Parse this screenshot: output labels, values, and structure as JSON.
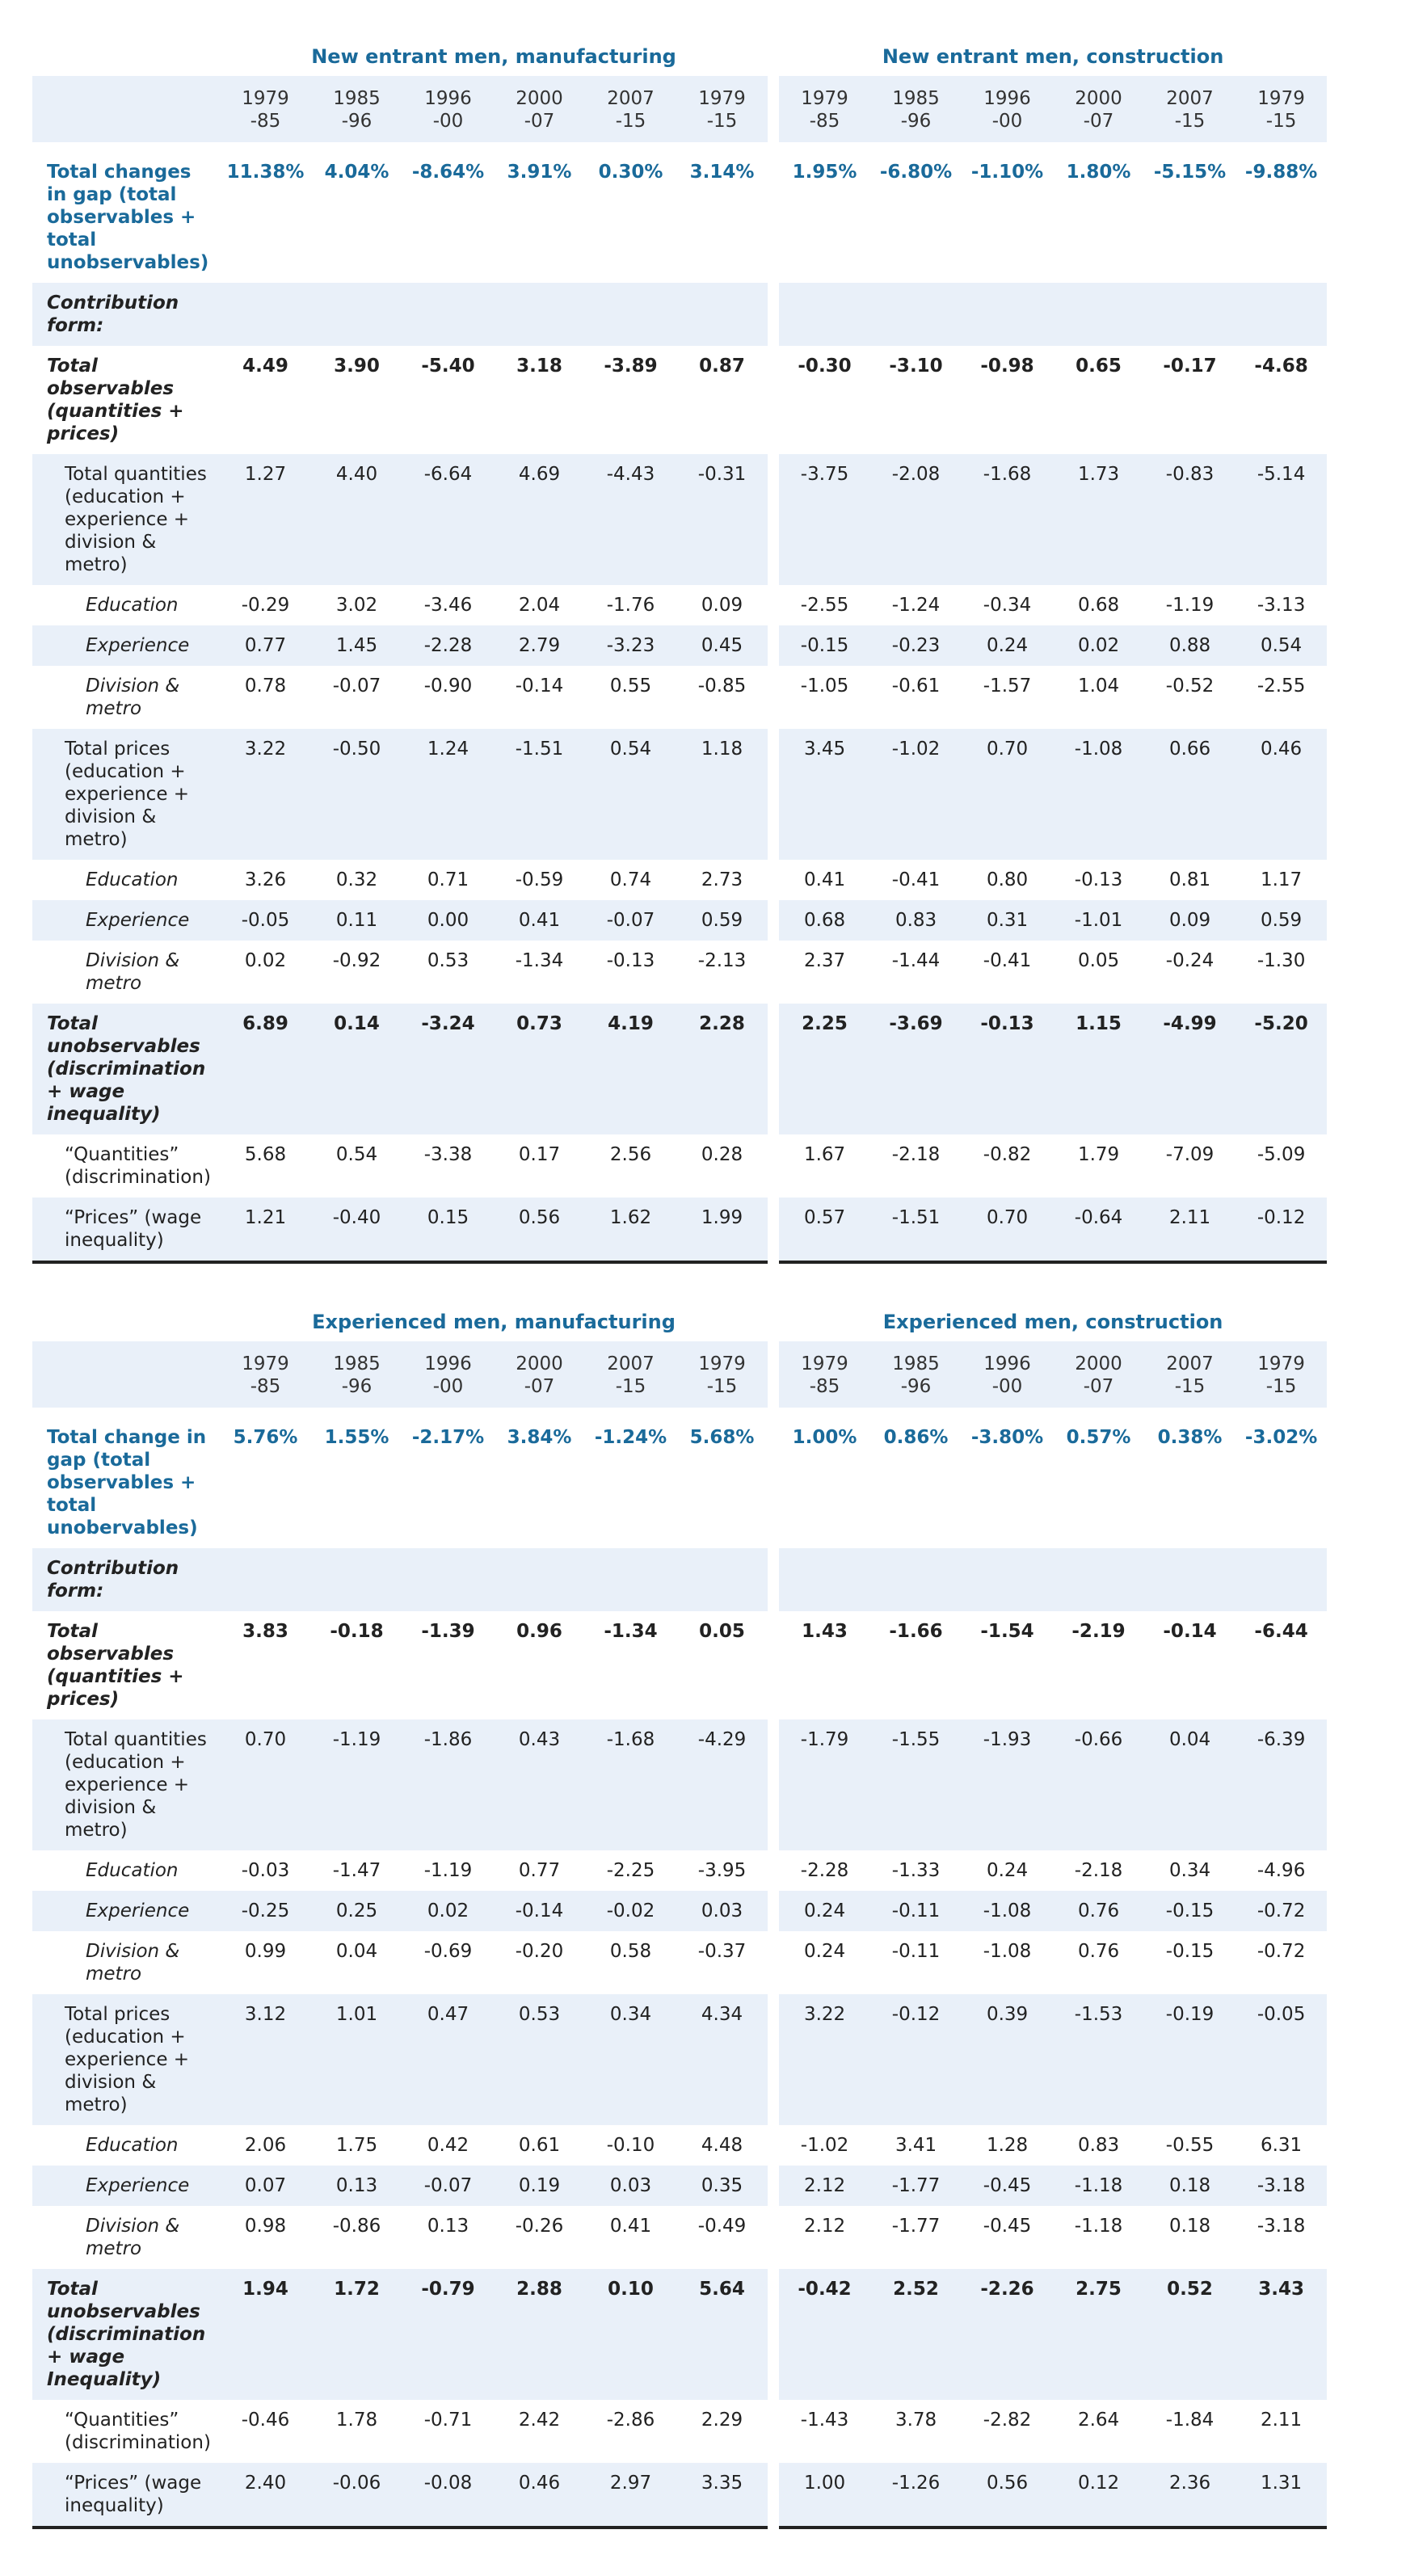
{
  "blocks": [
    {
      "panels": [
        {
          "title": "New entrant men, manufacturing",
          "years": [
            "1979-85",
            "1985-96",
            "1996-00",
            "2000-07",
            "2007-15",
            "1979-15"
          ]
        },
        {
          "title": "New entrant men, construction",
          "years": [
            "1979-85",
            "1985-96",
            "1996-00",
            "2000-07",
            "2007-15",
            "1979-15"
          ]
        }
      ],
      "rows": [
        {
          "label": "Total changes in gap (total observables + total unobservables)",
          "style": "total",
          "values": [
            [
              "11.38%",
              "4.04%",
              "-8.64%",
              "3.91%",
              "0.30%",
              "3.14%"
            ],
            [
              "1.95%",
              "-6.80%",
              "-1.10%",
              "1.80%",
              "-5.15%",
              "-9.88%"
            ]
          ]
        },
        {
          "label": "Contribution form:",
          "style": "section"
        },
        {
          "label": "Total observables (quantities + prices)",
          "style": "major",
          "values": [
            [
              "4.49",
              "3.90",
              "-5.40",
              "3.18",
              "-3.89",
              "0.87"
            ],
            [
              "-0.30",
              "-3.10",
              "-0.98",
              "0.65",
              "-0.17",
              "-4.68"
            ]
          ]
        },
        {
          "label": "Total quantities (education + experience + division & metro)",
          "style": "sub1",
          "values": [
            [
              "1.27",
              "4.40",
              "-6.64",
              "4.69",
              "-4.43",
              "-0.31"
            ],
            [
              "-3.75",
              "-2.08",
              "-1.68",
              "1.73",
              "-0.83",
              "-5.14"
            ]
          ]
        },
        {
          "label": "Education",
          "style": "sub2",
          "values": [
            [
              "-0.29",
              "3.02",
              "-3.46",
              "2.04",
              "-1.76",
              "0.09"
            ],
            [
              "-2.55",
              "-1.24",
              "-0.34",
              "0.68",
              "-1.19",
              "-3.13"
            ]
          ]
        },
        {
          "label": "Experience",
          "style": "sub2",
          "values": [
            [
              "0.77",
              "1.45",
              "-2.28",
              "2.79",
              "-3.23",
              "0.45"
            ],
            [
              "-0.15",
              "-0.23",
              "0.24",
              "0.02",
              "0.88",
              "0.54"
            ]
          ]
        },
        {
          "label": "Division & metro",
          "style": "sub2",
          "values": [
            [
              "0.78",
              "-0.07",
              "-0.90",
              "-0.14",
              "0.55",
              "-0.85"
            ],
            [
              "-1.05",
              "-0.61",
              "-1.57",
              "1.04",
              "-0.52",
              "-2.55"
            ]
          ]
        },
        {
          "label": "Total prices (education + experience + division & metro)",
          "style": "sub1",
          "values": [
            [
              "3.22",
              "-0.50",
              "1.24",
              "-1.51",
              "0.54",
              "1.18"
            ],
            [
              "3.45",
              "-1.02",
              "0.70",
              "-1.08",
              "0.66",
              "0.46"
            ]
          ]
        },
        {
          "label": "Education",
          "style": "sub2",
          "values": [
            [
              "3.26",
              "0.32",
              "0.71",
              "-0.59",
              "0.74",
              "2.73"
            ],
            [
              "0.41",
              "-0.41",
              "0.80",
              "-0.13",
              "0.81",
              "1.17"
            ]
          ]
        },
        {
          "label": "Experience",
          "style": "sub2",
          "values": [
            [
              "-0.05",
              "0.11",
              "0.00",
              "0.41",
              "-0.07",
              "0.59"
            ],
            [
              "0.68",
              "0.83",
              "0.31",
              "-1.01",
              "0.09",
              "0.59"
            ]
          ]
        },
        {
          "label": "Division & metro",
          "style": "sub2",
          "values": [
            [
              "0.02",
              "-0.92",
              "0.53",
              "-1.34",
              "-0.13",
              "-2.13"
            ],
            [
              "2.37",
              "-1.44",
              "-0.41",
              "0.05",
              "-0.24",
              "-1.30"
            ]
          ]
        },
        {
          "label": "Total unobservables (discrimination + wage inequality)",
          "style": "major",
          "values": [
            [
              "6.89",
              "0.14",
              "-3.24",
              "0.73",
              "4.19",
              "2.28"
            ],
            [
              "2.25",
              "-3.69",
              "-0.13",
              "1.15",
              "-4.99",
              "-5.20"
            ]
          ]
        },
        {
          "label": "“Quantities” (discrimination)",
          "style": "sub1",
          "values": [
            [
              "5.68",
              "0.54",
              "-3.38",
              "0.17",
              "2.56",
              "0.28"
            ],
            [
              "1.67",
              "-2.18",
              "-0.82",
              "1.79",
              "-7.09",
              "-5.09"
            ]
          ]
        },
        {
          "label": "“Prices” (wage inequality)",
          "style": "sub1",
          "values": [
            [
              "1.21",
              "-0.40",
              "0.15",
              "0.56",
              "1.62",
              "1.99"
            ],
            [
              "0.57",
              "-1.51",
              "0.70",
              "-0.64",
              "2.11",
              "-0.12"
            ]
          ]
        }
      ]
    },
    {
      "panels": [
        {
          "title": "Experienced men, manufacturing",
          "years": [
            "1979-85",
            "1985-96",
            "1996-00",
            "2000-07",
            "2007-15",
            "1979-15"
          ]
        },
        {
          "title": "Experienced men, construction",
          "years": [
            "1979-85",
            "1985-96",
            "1996-00",
            "2000-07",
            "2007-15",
            "1979-15"
          ]
        }
      ],
      "rows": [
        {
          "label": "Total change in gap (total observables + total unobervables)",
          "style": "total",
          "values": [
            [
              "5.76%",
              "1.55%",
              "-2.17%",
              "3.84%",
              "-1.24%",
              "5.68%"
            ],
            [
              "1.00%",
              "0.86%",
              "-3.80%",
              "0.57%",
              "0.38%",
              "-3.02%"
            ]
          ]
        },
        {
          "label": "Contribution form:",
          "style": "section"
        },
        {
          "label": "Total observables (quantities + prices)",
          "style": "major",
          "values": [
            [
              "3.83",
              "-0.18",
              "-1.39",
              "0.96",
              "-1.34",
              "0.05"
            ],
            [
              "1.43",
              "-1.66",
              "-1.54",
              "-2.19",
              "-0.14",
              "-6.44"
            ]
          ]
        },
        {
          "label": "Total quantities (education + experience + division & metro)",
          "style": "sub1",
          "values": [
            [
              "0.70",
              "-1.19",
              "-1.86",
              "0.43",
              "-1.68",
              "-4.29"
            ],
            [
              "-1.79",
              "-1.55",
              "-1.93",
              "-0.66",
              "0.04",
              "-6.39"
            ]
          ]
        },
        {
          "label": "Education",
          "style": "sub2",
          "values": [
            [
              "-0.03",
              "-1.47",
              "-1.19",
              "0.77",
              "-2.25",
              "-3.95"
            ],
            [
              "-2.28",
              "-1.33",
              "0.24",
              "-2.18",
              "0.34",
              "-4.96"
            ]
          ]
        },
        {
          "label": "Experience",
          "style": "sub2",
          "values": [
            [
              "-0.25",
              "0.25",
              "0.02",
              "-0.14",
              "-0.02",
              "0.03"
            ],
            [
              "0.24",
              "-0.11",
              "-1.08",
              "0.76",
              "-0.15",
              "-0.72"
            ]
          ]
        },
        {
          "label": "Division & metro",
          "style": "sub2",
          "values": [
            [
              "0.99",
              "0.04",
              "-0.69",
              "-0.20",
              "0.58",
              "-0.37"
            ],
            [
              "0.24",
              "-0.11",
              "-1.08",
              "0.76",
              "-0.15",
              "-0.72"
            ]
          ]
        },
        {
          "label": "Total prices (education + experience + division & metro)",
          "style": "sub1",
          "values": [
            [
              "3.12",
              "1.01",
              "0.47",
              "0.53",
              "0.34",
              "4.34"
            ],
            [
              "3.22",
              "-0.12",
              "0.39",
              "-1.53",
              "-0.19",
              "-0.05"
            ]
          ]
        },
        {
          "label": "Education",
          "style": "sub2",
          "values": [
            [
              "2.06",
              "1.75",
              "0.42",
              "0.61",
              "-0.10",
              "4.48"
            ],
            [
              "-1.02",
              "3.41",
              "1.28",
              "0.83",
              "-0.55",
              "6.31"
            ]
          ]
        },
        {
          "label": "Experience",
          "style": "sub2",
          "values": [
            [
              "0.07",
              "0.13",
              "-0.07",
              "0.19",
              "0.03",
              "0.35"
            ],
            [
              "2.12",
              "-1.77",
              "-0.45",
              "-1.18",
              "0.18",
              "-3.18"
            ]
          ]
        },
        {
          "label": "Division & metro",
          "style": "sub2",
          "values": [
            [
              "0.98",
              "-0.86",
              "0.13",
              "-0.26",
              "0.41",
              "-0.49"
            ],
            [
              "2.12",
              "-1.77",
              "-0.45",
              "-1.18",
              "0.18",
              "-3.18"
            ]
          ]
        },
        {
          "label": "Total unobservables (discrimination + wage Inequality)",
          "style": "major",
          "values": [
            [
              "1.94",
              "1.72",
              "-0.79",
              "2.88",
              "0.10",
              "5.64"
            ],
            [
              "-0.42",
              "2.52",
              "-2.26",
              "2.75",
              "0.52",
              "3.43"
            ]
          ]
        },
        {
          "label": "“Quantities” (discrimination)",
          "style": "sub1",
          "values": [
            [
              "-0.46",
              "1.78",
              "-0.71",
              "2.42",
              "-2.86",
              "2.29"
            ],
            [
              "-1.43",
              "3.78",
              "-2.82",
              "2.64",
              "-1.84",
              "2.11"
            ]
          ]
        },
        {
          "label": "“Prices” (wage inequality)",
          "style": "sub1",
          "values": [
            [
              "2.40",
              "-0.06",
              "-0.08",
              "0.46",
              "2.97",
              "3.35"
            ],
            [
              "1.00",
              "-1.26",
              "0.56",
              "0.12",
              "2.36",
              "1.31"
            ]
          ]
        }
      ]
    }
  ]
}
